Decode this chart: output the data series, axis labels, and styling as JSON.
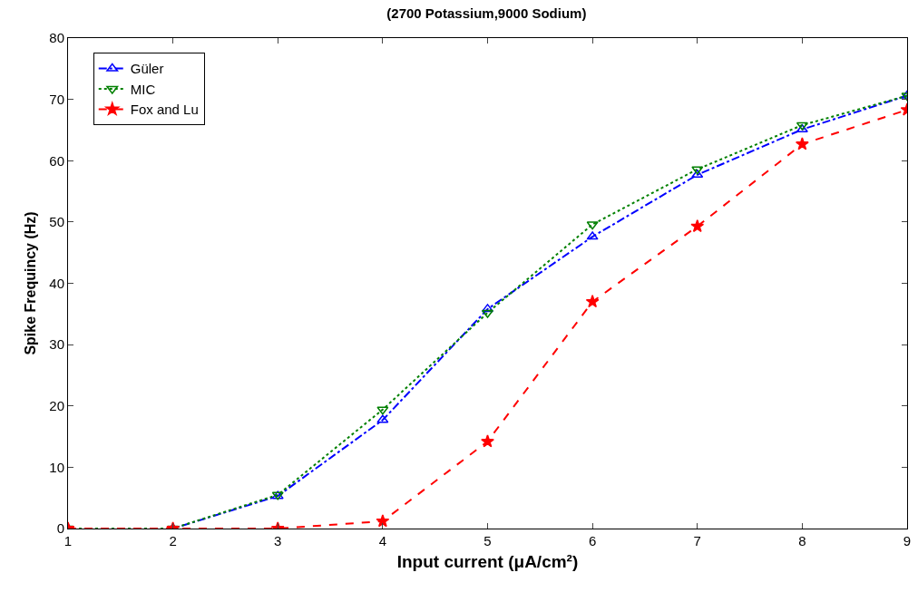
{
  "chart_data": {
    "type": "line",
    "title": "(2700 Potassium,9000 Sodium)",
    "xlabel": "Input current (μA/cm²)",
    "ylabel": "Spike Frequincy (Hz)",
    "x": [
      1,
      2,
      3,
      4,
      5,
      6,
      7,
      8,
      9
    ],
    "series": [
      {
        "name": "Güler",
        "color": "#0000ff",
        "marker": "triangle",
        "line_style": "dashdot",
        "values": [
          0,
          0,
          5.3,
          17.7,
          35.8,
          47.6,
          57.7,
          65.1,
          70.6
        ]
      },
      {
        "name": "MIC",
        "color": "#008000",
        "marker": "triangle-down",
        "line_style": "dotted",
        "values": [
          0,
          0,
          5.5,
          19.4,
          35.2,
          49.6,
          58.6,
          65.8,
          70.6
        ]
      },
      {
        "name": "Fox and Lu",
        "color": "#ff0000",
        "marker": "star",
        "line_style": "dashed",
        "values": [
          0,
          0,
          0,
          1.2,
          14.2,
          37,
          49.3,
          62.7,
          68.3
        ]
      }
    ],
    "xlim": [
      1,
      9
    ],
    "xticks": [
      1,
      2,
      3,
      4,
      5,
      6,
      7,
      8,
      9
    ],
    "ylim": [
      0,
      80
    ],
    "yticks": [
      0,
      10,
      20,
      30,
      40,
      50,
      60,
      70,
      80
    ],
    "grid": false,
    "legend": "top left"
  }
}
